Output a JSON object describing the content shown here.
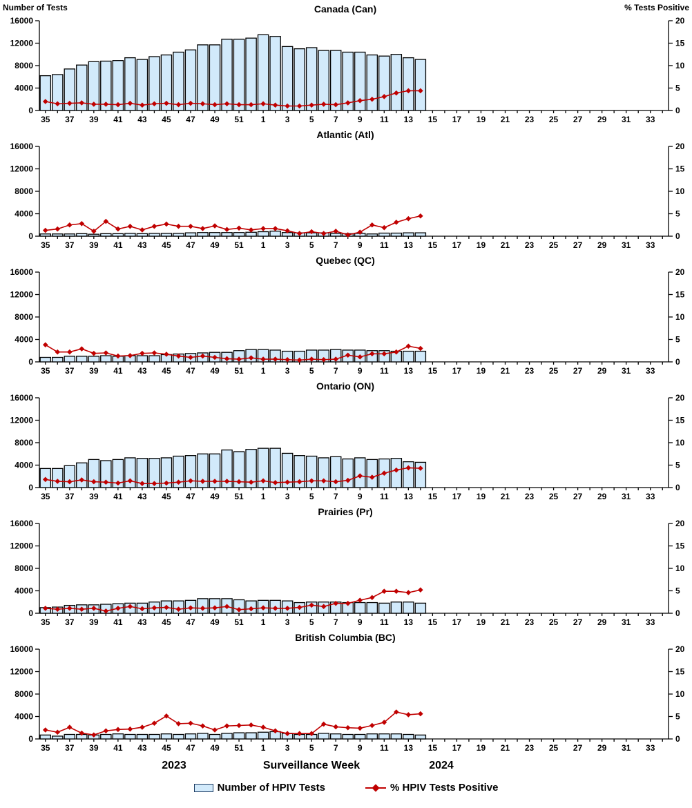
{
  "chart_data": {
    "type": "bar+line",
    "x_label": "Surveillance Week",
    "x_year_left": "2023",
    "x_year_right": "2024",
    "x_categories_weeks": [
      35,
      36,
      37,
      38,
      39,
      40,
      41,
      42,
      43,
      44,
      45,
      46,
      47,
      48,
      49,
      50,
      51,
      52,
      1,
      2,
      3,
      4,
      5,
      6,
      7,
      8,
      9,
      10,
      11,
      12,
      13,
      14,
      15,
      16,
      17,
      18,
      19,
      20,
      21,
      22,
      23,
      24,
      25,
      26,
      27,
      28,
      29,
      30,
      31,
      32,
      33,
      34
    ],
    "left_ylabel": "Number of Tests",
    "left_ylim": [
      0,
      16000
    ],
    "left_yticks": [
      0,
      4000,
      8000,
      12000,
      16000
    ],
    "right_ylabel": "% Tests Positive",
    "right_ylim": [
      0,
      20
    ],
    "right_yticks": [
      0,
      5,
      10,
      15,
      20
    ],
    "legend": {
      "bars": "Number of HPIV Tests",
      "line": "% HPIV Tests Positive"
    },
    "panels": [
      {
        "title": "Canada (Can)",
        "tests": [
          6200,
          6400,
          7400,
          8100,
          8700,
          8800,
          8900,
          9400,
          9100,
          9600,
          9900,
          10400,
          10800,
          11700,
          11700,
          12700,
          12700,
          12900,
          13500,
          13200,
          11400,
          11000,
          11200,
          10700,
          10700,
          10400,
          10400,
          9900,
          9700,
          10000,
          9400,
          9100
        ],
        "pct_positive": [
          2.0,
          1.5,
          1.6,
          1.7,
          1.4,
          1.4,
          1.3,
          1.6,
          1.2,
          1.5,
          1.6,
          1.3,
          1.6,
          1.5,
          1.3,
          1.5,
          1.3,
          1.3,
          1.5,
          1.2,
          1.0,
          1.0,
          1.2,
          1.4,
          1.3,
          1.7,
          2.2,
          2.5,
          3.1,
          3.9,
          4.4,
          4.4
        ]
      },
      {
        "title": "Atlantic (Atl)",
        "tests": [
          400,
          400,
          400,
          450,
          350,
          450,
          450,
          500,
          450,
          500,
          500,
          500,
          600,
          650,
          650,
          650,
          650,
          700,
          800,
          900,
          650,
          600,
          600,
          600,
          500,
          450,
          500,
          400,
          550,
          550,
          600,
          600
        ],
        "pct_positive": [
          1.3,
          1.6,
          2.5,
          2.8,
          1.1,
          3.3,
          1.6,
          2.2,
          1.4,
          2.2,
          2.7,
          2.2,
          2.2,
          1.7,
          2.3,
          1.5,
          1.8,
          1.4,
          1.7,
          1.7,
          1.2,
          0.6,
          1.0,
          0.6,
          1.1,
          0.3,
          0.9,
          2.5,
          1.9,
          3.1,
          3.9,
          4.5
        ]
      },
      {
        "title": "Quebec (QC)",
        "tests": [
          800,
          800,
          1000,
          1000,
          1000,
          1100,
          1000,
          1100,
          1100,
          1100,
          1300,
          1400,
          1500,
          1600,
          1700,
          1700,
          2000,
          2200,
          2200,
          2100,
          1900,
          1900,
          2100,
          2100,
          2200,
          2100,
          2100,
          2000,
          2000,
          1900,
          1900,
          1900
        ],
        "pct_positive": [
          3.8,
          2.2,
          2.2,
          2.9,
          1.9,
          2.0,
          1.3,
          1.4,
          1.9,
          2.0,
          1.7,
          1.3,
          1.0,
          1.3,
          1.0,
          0.7,
          0.6,
          0.9,
          0.6,
          0.6,
          0.5,
          0.4,
          0.6,
          0.5,
          0.6,
          1.5,
          1.1,
          1.8,
          1.8,
          2.2,
          3.5,
          3.0
        ]
      },
      {
        "title": "Ontario (ON)",
        "tests": [
          3400,
          3400,
          3900,
          4400,
          5000,
          4800,
          5000,
          5300,
          5200,
          5200,
          5300,
          5600,
          5700,
          6000,
          6000,
          6700,
          6400,
          6800,
          7000,
          7000,
          6100,
          5700,
          5600,
          5300,
          5500,
          5100,
          5300,
          5000,
          5100,
          5200,
          4600,
          4500
        ],
        "pct_positive": [
          1.8,
          1.4,
          1.3,
          1.7,
          1.3,
          1.2,
          1.0,
          1.5,
          0.9,
          0.9,
          1.0,
          1.2,
          1.5,
          1.4,
          1.4,
          1.4,
          1.3,
          1.2,
          1.5,
          1.1,
          1.2,
          1.3,
          1.5,
          1.5,
          1.3,
          1.6,
          2.6,
          2.3,
          3.2,
          3.9,
          4.4,
          4.3
        ]
      },
      {
        "title": "Prairies (Pr)",
        "tests": [
          1000,
          1100,
          1400,
          1500,
          1500,
          1600,
          1700,
          1800,
          1800,
          2000,
          2200,
          2200,
          2300,
          2600,
          2600,
          2600,
          2400,
          2200,
          2300,
          2300,
          2200,
          1900,
          2000,
          2000,
          2000,
          1900,
          1900,
          1900,
          1800,
          2000,
          2000,
          1800
        ],
        "pct_positive": [
          1.1,
          0.9,
          1.1,
          0.9,
          1.1,
          0.5,
          1.1,
          1.5,
          1.0,
          1.2,
          1.3,
          0.9,
          1.2,
          1.1,
          1.2,
          1.5,
          0.8,
          1.0,
          1.2,
          1.1,
          1.1,
          1.3,
          1.8,
          1.5,
          2.2,
          2.2,
          2.9,
          3.5,
          4.9,
          4.9,
          4.6,
          5.2
        ]
      },
      {
        "title": "British Columbia (BC)",
        "tests": [
          700,
          500,
          800,
          800,
          700,
          800,
          900,
          800,
          800,
          800,
          900,
          800,
          900,
          1000,
          800,
          1000,
          1100,
          1100,
          1200,
          1300,
          1000,
          800,
          800,
          1000,
          900,
          800,
          800,
          900,
          900,
          900,
          800,
          700
        ],
        "pct_positive": [
          2.0,
          1.5,
          2.6,
          1.3,
          0.9,
          1.8,
          2.1,
          2.2,
          2.6,
          3.5,
          5.1,
          3.4,
          3.5,
          2.9,
          2.0,
          2.9,
          3.0,
          3.1,
          2.6,
          1.8,
          1.2,
          1.2,
          1.2,
          3.3,
          2.7,
          2.5,
          2.4,
          3.0,
          3.7,
          6.0,
          5.4,
          5.6
        ]
      }
    ],
    "colors": {
      "bar_fill": "#d2eafb",
      "bar_stroke": "#000000",
      "line": "#c00000",
      "axis": "#000000"
    }
  }
}
